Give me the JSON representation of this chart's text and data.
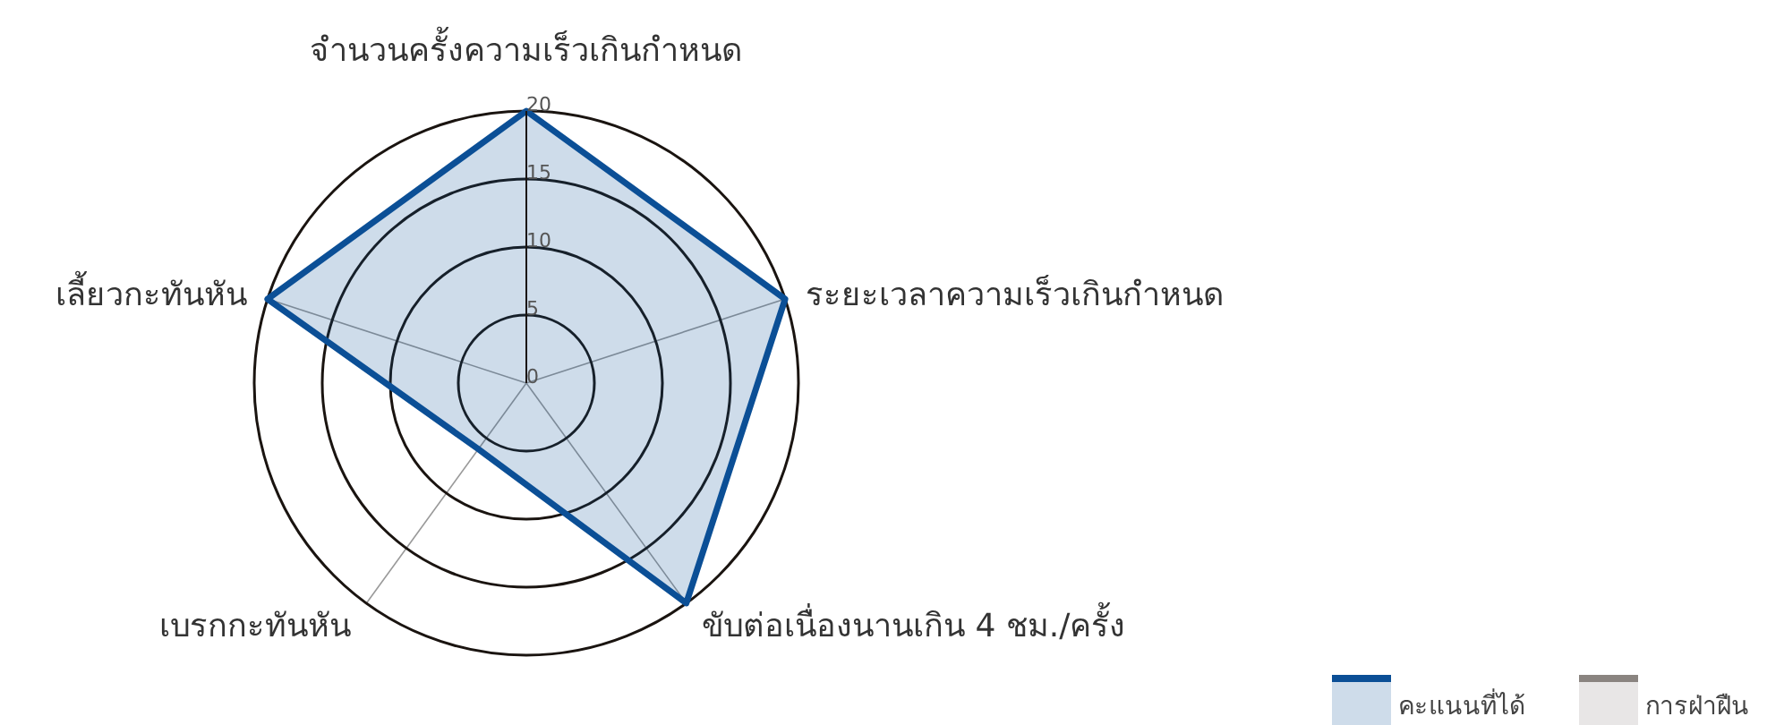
{
  "chart_data": {
    "type": "radar",
    "categories": [
      "จำนวนครั้งความเร็วเกินกำหนด",
      "ระยะเวลาความเร็วเกินกำหนด",
      "ขับต่อเนื่องนานเกิน 4 ชม./ครั้ง",
      "เบรกกะทันหัน",
      "เลี้ยวกะทันหัน"
    ],
    "series": [
      {
        "name": "คะแนนที่ได้",
        "color": "#0b4f96",
        "values": [
          20,
          20,
          20,
          6,
          20
        ]
      },
      {
        "name": "การฝ่าฝืน",
        "color": "#8a8480",
        "values": [
          null,
          null,
          null,
          null,
          null
        ]
      }
    ],
    "ylim": [
      0,
      20
    ],
    "yticks": [
      0,
      5,
      10,
      15,
      20
    ],
    "grid": true,
    "legend": "bottom right"
  }
}
